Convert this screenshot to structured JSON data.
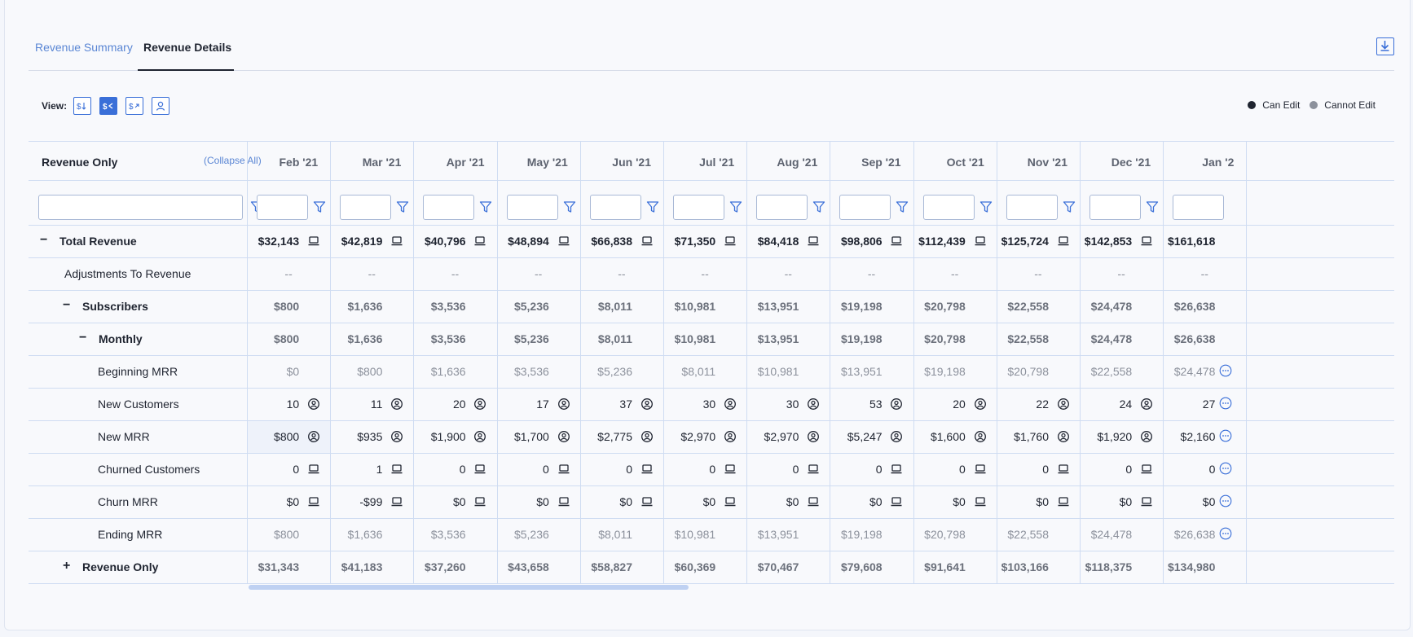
{
  "tabs": [
    {
      "label": "Revenue Summary",
      "active": false
    },
    {
      "label": "Revenue Details",
      "active": true
    }
  ],
  "toolbar": {
    "view_label": "View:",
    "view_icons": [
      "dollar-sort-icon",
      "dollar-collapse-icon",
      "dollar-expand-icon",
      "person-icon"
    ],
    "active_view_index": 1,
    "download_icon": "download-icon"
  },
  "legend": {
    "can_edit": "Can Edit",
    "cannot_edit": "Cannot Edit",
    "can_edit_color": "#1f2430",
    "cannot_edit_color": "#8c919c"
  },
  "table": {
    "header_label": "Revenue Only",
    "collapse_all": "(Collapse All)",
    "months": [
      "Feb '21",
      "Mar '21",
      "Apr '21",
      "May '21",
      "Jun '21",
      "Jul '21",
      "Aug '21",
      "Sep '21",
      "Oct '21",
      "Nov '21",
      "Dec '21",
      "Jan '2"
    ],
    "rows": [
      {
        "label": "Total Revenue",
        "toggle": "−",
        "indent": 0,
        "style": "bold",
        "icon": "laptop-icon",
        "values": [
          "$32,143",
          "$42,819",
          "$40,796",
          "$48,894",
          "$66,838",
          "$71,350",
          "$84,418",
          "$98,806",
          "$112,439",
          "$125,724",
          "$142,853",
          "$161,618"
        ]
      },
      {
        "label": "Adjustments To Revenue",
        "toggle": "",
        "indent": 0,
        "style": "dash",
        "icon": "",
        "values": [
          "--",
          "--",
          "--",
          "--",
          "--",
          "--",
          "--",
          "--",
          "--",
          "--",
          "--",
          "--"
        ]
      },
      {
        "label": "Subscribers",
        "toggle": "−",
        "indent": 1,
        "style": "graybold",
        "icon": "",
        "values": [
          "$800",
          "$1,636",
          "$3,536",
          "$5,236",
          "$8,011",
          "$10,981",
          "$13,951",
          "$19,198",
          "$20,798",
          "$22,558",
          "$24,478",
          "$26,638"
        ]
      },
      {
        "label": "Monthly",
        "toggle": "−",
        "indent": 2,
        "style": "graybold",
        "icon": "",
        "values": [
          "$800",
          "$1,636",
          "$3,536",
          "$5,236",
          "$8,011",
          "$10,981",
          "$13,951",
          "$19,198",
          "$20,798",
          "$22,558",
          "$24,478",
          "$26,638"
        ]
      },
      {
        "label": "Beginning MRR",
        "toggle": "",
        "indent": 3,
        "style": "gray",
        "icon": "",
        "more": true,
        "values": [
          "$0",
          "$800",
          "$1,636",
          "$3,536",
          "$5,236",
          "$8,011",
          "$10,981",
          "$13,951",
          "$19,198",
          "$20,798",
          "$22,558",
          "$24,478"
        ]
      },
      {
        "label": "New Customers",
        "toggle": "",
        "indent": 3,
        "style": "normal",
        "icon": "person-icon",
        "more": true,
        "values": [
          "10",
          "11",
          "20",
          "17",
          "37",
          "30",
          "30",
          "53",
          "20",
          "22",
          "24",
          "27"
        ]
      },
      {
        "label": "New MRR",
        "toggle": "",
        "indent": 3,
        "style": "normal",
        "icon": "person-icon",
        "more": true,
        "highlight_first": true,
        "values": [
          "$800",
          "$935",
          "$1,900",
          "$1,700",
          "$2,775",
          "$2,970",
          "$2,970",
          "$5,247",
          "$1,600",
          "$1,760",
          "$1,920",
          "$2,160"
        ]
      },
      {
        "label": "Churned Customers",
        "toggle": "",
        "indent": 3,
        "style": "normal",
        "icon": "laptop-icon",
        "more": true,
        "values": [
          "0",
          "1",
          "0",
          "0",
          "0",
          "0",
          "0",
          "0",
          "0",
          "0",
          "0",
          "0"
        ]
      },
      {
        "label": "Churn MRR",
        "toggle": "",
        "indent": 3,
        "style": "normal",
        "icon": "laptop-icon",
        "more": true,
        "values": [
          "$0",
          "-$99",
          "$0",
          "$0",
          "$0",
          "$0",
          "$0",
          "$0",
          "$0",
          "$0",
          "$0",
          "$0"
        ]
      },
      {
        "label": "Ending MRR",
        "toggle": "",
        "indent": 3,
        "style": "gray",
        "icon": "",
        "more": true,
        "values": [
          "$800",
          "$1,636",
          "$3,536",
          "$5,236",
          "$8,011",
          "$10,981",
          "$13,951",
          "$19,198",
          "$20,798",
          "$22,558",
          "$24,478",
          "$26,638"
        ]
      },
      {
        "label": "Revenue Only",
        "toggle": "+",
        "indent": 1,
        "style": "graybold",
        "icon": "",
        "values": [
          "$31,343",
          "$41,183",
          "$37,260",
          "$43,658",
          "$58,827",
          "$60,369",
          "$70,467",
          "$79,608",
          "$91,641",
          "$103,166",
          "$118,375",
          "$134,980"
        ]
      }
    ]
  },
  "colors": {
    "accent": "#3a6fd8",
    "link": "#5a86d4",
    "grid_line": "#cfdcf2"
  }
}
